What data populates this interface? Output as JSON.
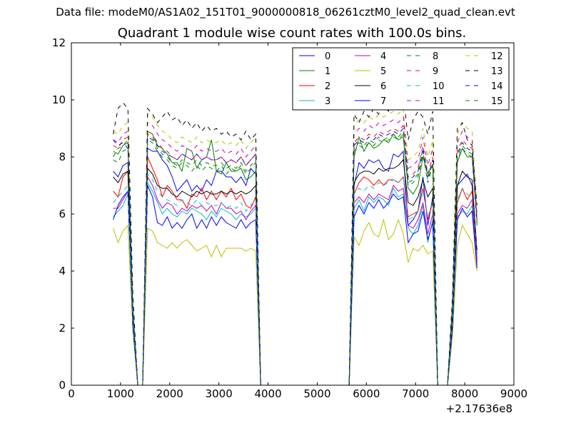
{
  "figure": {
    "suptitle": "Data file: modeM0/AS1A02_151T01_9000000818_06261cztM0_level2_quad_clean.evt"
  },
  "chart_data": {
    "type": "line",
    "title": "Quadrant 1 module wise count rates with 100.0s bins.",
    "xlabel": "",
    "ylabel": "",
    "x_offset_label": "+2.17636e8",
    "xlim": [
      0,
      9000
    ],
    "ylim": [
      0,
      12
    ],
    "xticks": [
      0,
      1000,
      2000,
      3000,
      4000,
      5000,
      6000,
      7000,
      8000,
      9000
    ],
    "yticks": [
      0,
      2,
      4,
      6,
      8,
      10,
      12
    ],
    "grid": false,
    "legend": {
      "placement": "top-right",
      "columns": 4
    },
    "x": [
      850,
      950,
      1050,
      1150,
      1250,
      1350,
      1450,
      1550,
      1650,
      1750,
      1850,
      1950,
      2050,
      2150,
      2250,
      2350,
      2450,
      2550,
      2650,
      2750,
      2850,
      2950,
      3050,
      3150,
      3250,
      3350,
      3450,
      3550,
      3650,
      3750,
      3850,
      3950,
      4500,
      5000,
      5650,
      5750,
      5850,
      5950,
      6050,
      6150,
      6250,
      6350,
      6450,
      6550,
      6650,
      6750,
      6850,
      6950,
      7050,
      7150,
      7250,
      7350,
      7450,
      7550,
      7650,
      7750,
      7850,
      7950,
      8050,
      8150,
      8250
    ],
    "series": [
      {
        "name": "0",
        "color": "#0000ff",
        "dash": "solid",
        "values": [
          7.5,
          7.3,
          7.7,
          7.8,
          2.5,
          0.0,
          0.0,
          8.3,
          8.2,
          8.2,
          7.9,
          7.7,
          7.3,
          6.8,
          7.0,
          7.2,
          6.8,
          7.0,
          6.8,
          7.2,
          7.0,
          7.5,
          7.5,
          7.3,
          7.3,
          7.1,
          7.3,
          7.0,
          7.6,
          7.4,
          0.0,
          0.0,
          0.0,
          0.0,
          0.0,
          7.0,
          7.8,
          7.6,
          7.9,
          7.8,
          7.9,
          7.6,
          7.5,
          8.1,
          8.0,
          8.2,
          5.6,
          5.8,
          6.1,
          7.3,
          5.6,
          6.6,
          0.0,
          0.0,
          0.0,
          2.5,
          7.0,
          7.2,
          7.4,
          7.0,
          4.6
        ]
      },
      {
        "name": "1",
        "color": "#008000",
        "dash": "solid",
        "values": [
          8.2,
          8.1,
          8.4,
          8.5,
          2.7,
          0.0,
          0.0,
          8.9,
          8.8,
          8.4,
          8.3,
          8.1,
          7.8,
          7.8,
          7.5,
          8.3,
          8.2,
          7.6,
          7.9,
          8.0,
          8.6,
          7.5,
          7.4,
          7.8,
          7.5,
          7.5,
          7.6,
          7.2,
          7.3,
          7.5,
          0.0,
          0.0,
          0.0,
          0.0,
          0.0,
          8.0,
          8.7,
          8.2,
          8.5,
          8.3,
          8.4,
          8.6,
          8.5,
          8.8,
          8.6,
          8.7,
          6.9,
          6.7,
          7.0,
          8.0,
          7.4,
          7.7,
          0.0,
          0.0,
          0.0,
          2.8,
          7.8,
          8.3,
          8.0,
          8.0,
          5.8
        ]
      },
      {
        "name": "2",
        "color": "#ff0000",
        "dash": "solid",
        "values": [
          6.8,
          6.6,
          7.3,
          7.5,
          2.4,
          0.0,
          0.0,
          8.0,
          7.6,
          7.2,
          6.6,
          7.0,
          6.8,
          6.5,
          6.5,
          6.2,
          6.7,
          6.6,
          6.9,
          6.5,
          6.8,
          6.5,
          6.8,
          6.6,
          6.9,
          6.5,
          6.7,
          6.3,
          6.2,
          6.6,
          0.0,
          0.0,
          0.0,
          0.0,
          0.0,
          6.7,
          7.1,
          7.3,
          7.2,
          7.0,
          7.2,
          7.0,
          7.2,
          7.2,
          7.1,
          7.3,
          5.9,
          6.0,
          6.1,
          6.9,
          5.8,
          6.4,
          0.0,
          0.0,
          0.0,
          2.3,
          6.4,
          6.9,
          6.5,
          6.8,
          4.4
        ]
      },
      {
        "name": "3",
        "color": "#00bfbf",
        "dash": "solid",
        "values": [
          5.9,
          6.1,
          6.3,
          6.7,
          2.2,
          0.0,
          0.0,
          7.1,
          6.8,
          6.4,
          6.0,
          6.2,
          6.0,
          5.9,
          6.1,
          6.0,
          6.2,
          6.1,
          6.0,
          5.8,
          6.1,
          5.9,
          6.2,
          6.1,
          6.0,
          5.8,
          6.0,
          5.9,
          6.0,
          6.2,
          0.0,
          0.0,
          0.0,
          0.0,
          0.0,
          6.2,
          6.5,
          6.1,
          6.6,
          6.4,
          6.6,
          6.5,
          6.3,
          6.9,
          6.6,
          6.7,
          5.5,
          5.3,
          5.6,
          6.3,
          5.0,
          5.8,
          0.0,
          0.0,
          0.0,
          2.1,
          5.9,
          6.1,
          6.0,
          6.3,
          4.2
        ]
      },
      {
        "name": "4",
        "color": "#bf00bf",
        "dash": "solid",
        "values": [
          6.2,
          6.2,
          6.5,
          6.8,
          2.3,
          0.0,
          0.0,
          7.3,
          7.0,
          6.5,
          6.2,
          6.4,
          6.3,
          6.0,
          6.2,
          6.1,
          6.3,
          6.2,
          6.3,
          6.1,
          6.3,
          6.0,
          6.4,
          6.2,
          6.2,
          6.0,
          6.1,
          5.8,
          6.1,
          6.3,
          0.0,
          0.0,
          0.0,
          0.0,
          0.0,
          6.4,
          6.6,
          6.4,
          6.7,
          6.5,
          6.7,
          6.6,
          6.5,
          7.0,
          6.8,
          6.9,
          5.6,
          5.5,
          5.8,
          6.4,
          5.3,
          6.0,
          0.0,
          0.0,
          0.0,
          2.2,
          6.0,
          6.3,
          6.2,
          6.5,
          4.3
        ]
      },
      {
        "name": "5",
        "color": "#bfbf00",
        "dash": "solid",
        "values": [
          5.5,
          5.0,
          5.4,
          5.6,
          1.9,
          0.0,
          0.0,
          5.5,
          5.4,
          5.0,
          4.9,
          4.8,
          5.0,
          4.8,
          5.0,
          5.1,
          4.9,
          4.7,
          4.8,
          4.9,
          4.5,
          4.9,
          4.5,
          4.8,
          4.8,
          4.8,
          4.8,
          4.7,
          4.8,
          4.7,
          0.0,
          0.0,
          0.0,
          0.0,
          0.0,
          5.2,
          4.9,
          5.4,
          5.7,
          5.3,
          5.2,
          5.8,
          5.1,
          5.3,
          5.8,
          5.3,
          4.3,
          4.8,
          4.7,
          4.9,
          4.6,
          4.7,
          0.0,
          0.0,
          0.0,
          1.7,
          4.9,
          5.6,
          5.3,
          5.0,
          4.0
        ]
      },
      {
        "name": "6",
        "color": "#000000",
        "dash": "solid",
        "values": [
          7.3,
          7.1,
          7.4,
          7.5,
          2.5,
          0.0,
          0.0,
          7.6,
          7.4,
          7.0,
          6.9,
          6.9,
          6.7,
          6.6,
          6.8,
          6.7,
          6.6,
          6.8,
          6.7,
          6.8,
          6.7,
          6.7,
          6.8,
          6.7,
          6.8,
          6.7,
          6.8,
          6.7,
          6.8,
          7.0,
          0.0,
          0.0,
          0.0,
          0.0,
          0.0,
          7.1,
          7.4,
          7.5,
          7.5,
          7.4,
          7.6,
          7.5,
          7.6,
          7.6,
          7.7,
          7.9,
          6.4,
          6.3,
          6.6,
          7.2,
          6.6,
          6.9,
          0.0,
          0.0,
          0.0,
          2.4,
          7.0,
          7.5,
          7.3,
          7.2,
          4.7
        ]
      },
      {
        "name": "7",
        "color": "#0000ff",
        "dash": "solid",
        "values": [
          5.8,
          6.3,
          6.6,
          6.8,
          2.1,
          0.0,
          0.0,
          7.0,
          6.6,
          5.7,
          5.6,
          5.9,
          5.5,
          5.7,
          5.5,
          5.8,
          6.0,
          5.5,
          5.8,
          5.5,
          5.9,
          5.6,
          5.9,
          5.7,
          5.6,
          5.5,
          5.8,
          5.5,
          5.7,
          5.8,
          0.0,
          0.0,
          0.0,
          0.0,
          0.0,
          5.9,
          6.3,
          6.0,
          6.4,
          6.2,
          6.5,
          6.2,
          6.4,
          6.7,
          6.5,
          6.6,
          5.0,
          5.3,
          5.4,
          6.1,
          5.1,
          5.7,
          0.0,
          0.0,
          0.0,
          2.0,
          5.8,
          6.2,
          5.9,
          6.1,
          4.1
        ]
      },
      {
        "name": "8",
        "color": "#008000",
        "dash": "dashed",
        "values": [
          7.9,
          7.8,
          8.2,
          8.3,
          2.6,
          0.0,
          0.0,
          8.6,
          8.5,
          8.2,
          8.0,
          7.9,
          7.7,
          7.6,
          7.8,
          7.7,
          7.5,
          7.7,
          7.5,
          7.7,
          7.6,
          7.5,
          7.7,
          7.4,
          7.6,
          7.5,
          7.7,
          7.4,
          7.6,
          7.8,
          0.0,
          0.0,
          0.0,
          0.0,
          0.0,
          8.2,
          8.4,
          8.3,
          8.5,
          8.4,
          8.6,
          8.5,
          8.6,
          8.7,
          8.6,
          8.8,
          7.0,
          7.1,
          7.3,
          8.1,
          7.1,
          7.7,
          0.0,
          0.0,
          0.0,
          2.7,
          7.9,
          8.3,
          8.1,
          8.0,
          5.6
        ]
      },
      {
        "name": "9",
        "color": "#ff0000",
        "dash": "dashed",
        "values": [
          8.4,
          8.3,
          8.6,
          8.7,
          2.8,
          0.0,
          0.0,
          8.9,
          8.8,
          8.5,
          8.3,
          8.2,
          8.0,
          7.9,
          8.1,
          8.0,
          7.9,
          8.1,
          7.9,
          8.0,
          7.9,
          7.9,
          8.0,
          7.8,
          7.9,
          7.8,
          8.0,
          7.7,
          7.9,
          8.1,
          0.0,
          0.0,
          0.0,
          0.0,
          0.0,
          8.5,
          8.7,
          8.6,
          8.8,
          8.7,
          8.9,
          8.8,
          8.9,
          9.0,
          8.9,
          9.1,
          7.3,
          7.4,
          7.6,
          8.4,
          7.4,
          8.0,
          0.0,
          0.0,
          0.0,
          2.8,
          8.2,
          8.6,
          8.4,
          8.3,
          5.8
        ]
      },
      {
        "name": "10",
        "color": "#00bfbf",
        "dash": "dashed",
        "values": [
          6.4,
          6.6,
          6.8,
          7.0,
          2.3,
          0.0,
          0.0,
          7.4,
          7.2,
          6.8,
          6.6,
          6.5,
          6.4,
          6.3,
          6.5,
          6.4,
          6.3,
          6.5,
          6.3,
          6.4,
          6.3,
          6.3,
          6.4,
          6.2,
          6.3,
          6.2,
          6.4,
          6.1,
          6.3,
          6.5,
          0.0,
          0.0,
          0.0,
          0.0,
          0.0,
          6.7,
          6.9,
          6.8,
          7.0,
          6.9,
          7.1,
          7.0,
          7.1,
          7.2,
          7.1,
          7.3,
          5.8,
          5.9,
          6.1,
          6.8,
          5.9,
          6.4,
          0.0,
          0.0,
          0.0,
          2.3,
          6.5,
          6.9,
          6.7,
          6.6,
          4.6
        ]
      },
      {
        "name": "11",
        "color": "#bf00bf",
        "dash": "dashed",
        "values": [
          8.6,
          8.5,
          8.8,
          8.9,
          2.9,
          0.0,
          0.0,
          9.2,
          9.1,
          8.8,
          8.6,
          8.5,
          8.3,
          8.2,
          8.4,
          8.3,
          8.2,
          8.4,
          8.2,
          8.3,
          8.2,
          8.2,
          8.3,
          8.1,
          8.2,
          8.1,
          8.3,
          8.0,
          8.2,
          8.4,
          0.0,
          0.0,
          0.0,
          0.0,
          0.0,
          8.8,
          9.0,
          8.9,
          9.1,
          9.0,
          9.2,
          9.1,
          9.2,
          9.3,
          9.2,
          9.4,
          7.6,
          7.7,
          7.9,
          8.7,
          7.7,
          8.3,
          0.0,
          0.0,
          0.0,
          2.9,
          8.5,
          8.9,
          8.7,
          8.6,
          6.0
        ]
      },
      {
        "name": "12",
        "color": "#bfbf00",
        "dash": "dashed",
        "values": [
          8.9,
          8.8,
          9.1,
          9.2,
          3.0,
          0.0,
          0.0,
          9.5,
          9.4,
          9.1,
          8.9,
          8.8,
          8.6,
          8.5,
          8.7,
          8.6,
          8.5,
          8.7,
          8.5,
          8.6,
          8.5,
          8.5,
          8.6,
          8.4,
          8.5,
          8.4,
          8.6,
          8.3,
          8.5,
          8.7,
          0.0,
          0.0,
          0.0,
          0.0,
          0.0,
          9.1,
          9.3,
          9.2,
          9.4,
          9.3,
          9.5,
          9.4,
          9.5,
          9.6,
          9.5,
          9.7,
          7.9,
          8.0,
          8.2,
          9.0,
          8.0,
          8.6,
          0.0,
          0.0,
          0.0,
          3.0,
          8.8,
          9.2,
          9.0,
          8.9,
          6.2
        ]
      },
      {
        "name": "13",
        "color": "#000000",
        "dash": "dashed",
        "values": [
          8.8,
          9.7,
          9.9,
          9.7,
          3.2,
          0.0,
          0.0,
          9.7,
          9.5,
          9.2,
          9.4,
          9.6,
          9.3,
          9.4,
          9.1,
          9.3,
          9.0,
          9.2,
          8.9,
          9.1,
          8.9,
          9.0,
          8.8,
          8.9,
          8.7,
          8.8,
          8.6,
          8.9,
          8.6,
          8.8,
          0.0,
          0.0,
          0.0,
          0.0,
          0.0,
          9.5,
          9.2,
          9.6,
          9.4,
          9.7,
          9.5,
          9.8,
          9.6,
          10.0,
          9.9,
          10.2,
          8.6,
          9.3,
          9.6,
          9.4,
          8.8,
          9.6,
          0.0,
          0.0,
          0.0,
          3.1,
          9.0,
          9.2,
          8.6,
          8.4,
          6.3
        ]
      },
      {
        "name": "14",
        "color": "#0000ff",
        "dash": "dashed",
        "values": [
          8.6,
          8.4,
          8.5,
          8.3,
          2.8,
          0.0,
          0.0,
          8.7,
          8.6,
          8.4,
          8.2,
          8.1,
          8.0,
          7.9,
          8.1,
          8.0,
          7.9,
          8.1,
          7.9,
          8.0,
          7.9,
          7.9,
          8.0,
          7.8,
          7.9,
          7.8,
          8.0,
          7.7,
          7.9,
          8.1,
          0.0,
          0.0,
          0.0,
          0.0,
          0.0,
          8.4,
          8.6,
          8.5,
          8.7,
          8.6,
          8.8,
          8.7,
          8.8,
          8.9,
          8.8,
          9.0,
          7.2,
          7.3,
          7.5,
          8.3,
          7.3,
          7.9,
          0.0,
          0.0,
          0.0,
          2.8,
          8.1,
          8.5,
          8.3,
          8.2,
          5.7
        ]
      },
      {
        "name": "15",
        "color": "#008000",
        "dash": "dashed",
        "values": [
          8.0,
          8.3,
          8.4,
          8.6,
          2.7,
          0.0,
          0.0,
          8.8,
          8.7,
          8.3,
          8.1,
          8.0,
          7.8,
          7.7,
          7.9,
          7.8,
          7.7,
          7.9,
          7.7,
          7.8,
          7.7,
          7.7,
          7.8,
          7.6,
          7.7,
          7.6,
          7.8,
          7.5,
          7.7,
          7.9,
          0.0,
          0.0,
          0.0,
          0.0,
          0.0,
          8.3,
          8.5,
          8.4,
          8.6,
          8.5,
          8.7,
          8.6,
          8.7,
          8.8,
          8.7,
          8.9,
          7.1,
          7.2,
          7.4,
          8.2,
          7.2,
          7.8,
          0.0,
          0.0,
          0.0,
          2.7,
          8.0,
          8.4,
          8.2,
          8.1,
          5.7
        ]
      }
    ]
  }
}
